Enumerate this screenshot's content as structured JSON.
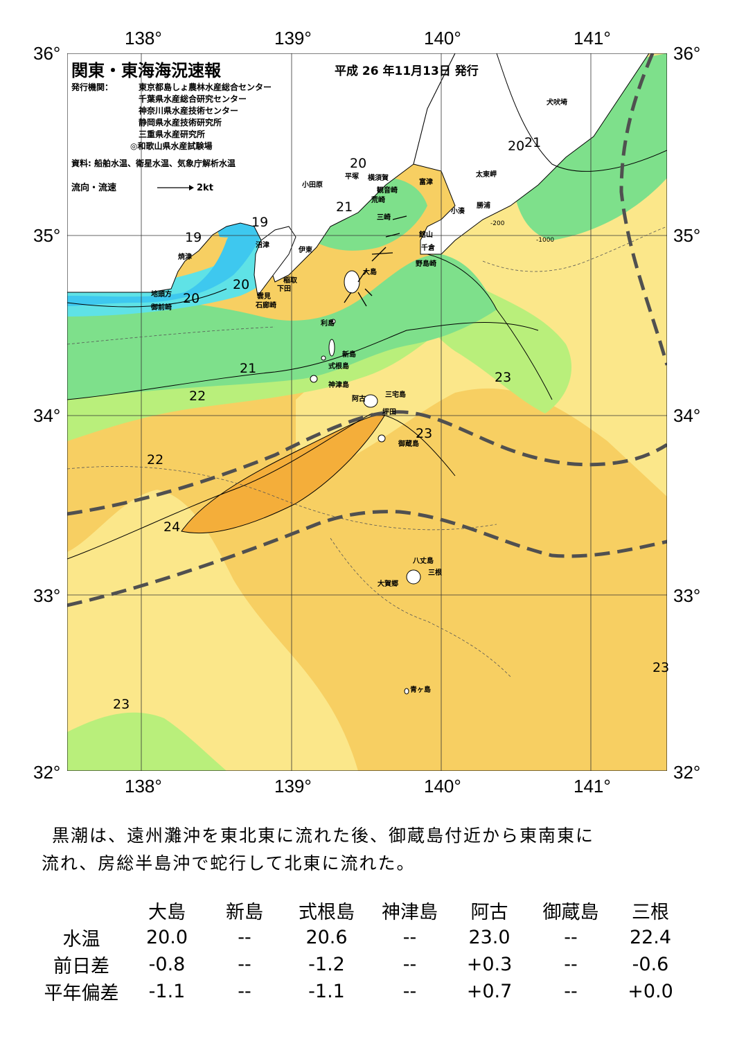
{
  "header": {
    "title": "関東・東海海況速報",
    "date": "平成 26 年11月13日 発行",
    "issuer_label": "発行機関：",
    "issuers": [
      "東京都島しょ農林水産総合センター",
      "千葉県水産総合研究センター",
      "神奈川県水産技術センター",
      "静岡県水産技術研究所",
      "三重県水産研究所",
      "◎和歌山県水産試験場"
    ],
    "sources": "資料: 船舶水温、衛星水温、気象庁解析水温",
    "flow_label": "流向・流速",
    "flow_scale": "2kt"
  },
  "axes": {
    "lon_labels": [
      "138°",
      "139°",
      "140°",
      "141°"
    ],
    "lat_labels": [
      "36°",
      "35°",
      "34°",
      "33°",
      "32°"
    ]
  },
  "place_names": [
    "犬吠埼",
    "太東岬",
    "勝浦",
    "小湊",
    "館山",
    "千倉",
    "野島崎",
    "富津",
    "観音崎",
    "横須賀",
    "平塚",
    "小田原",
    "荒崎",
    "三崎",
    "大島",
    "利島",
    "新島",
    "式根島",
    "神津島",
    "三宅島",
    "阿古",
    "坪田",
    "御蔵島",
    "八丈島",
    "三根",
    "大賀郷",
    "青ヶ島",
    "沼津",
    "伊東",
    "稲取",
    "下田",
    "雲見",
    "石廊崎",
    "焼津",
    "地頭方",
    "御前崎"
  ],
  "isotherm_labels": [
    "19",
    "19",
    "20",
    "20",
    "20",
    "20",
    "21",
    "21",
    "21",
    "22",
    "22",
    "23",
    "23",
    "23",
    "23",
    "24"
  ],
  "depth_labels": [
    "-200",
    "-1000"
  ],
  "colors": {
    "c19": "#3ec8ef",
    "c20": "#5fe2e6",
    "c21": "#7ee08b",
    "c22": "#b9ef7b",
    "c23": "#fbe78a",
    "c23b": "#f7cf62",
    "c24": "#f4ae3a",
    "land": "#ffffff",
    "kuroshio": "#505050"
  },
  "description": {
    "line1": "黒潮は、遠州灘沖を東北東に流れた後、御蔵島付近から東南東に",
    "line2": "流れ、房総半島沖で蛇行して北東に流れた。"
  },
  "table": {
    "columns": [
      "大島",
      "新島",
      "式根島",
      "神津島",
      "阿古",
      "御蔵島",
      "三根"
    ],
    "rows": [
      {
        "label": "水温",
        "values": [
          "20.0",
          "--",
          "20.6",
          "--",
          "23.0",
          "--",
          "22.4"
        ]
      },
      {
        "label": "前日差",
        "values": [
          "-0.8",
          "--",
          "-1.2",
          "--",
          "+0.3",
          "--",
          "-0.6"
        ]
      },
      {
        "label": "平年偏差",
        "values": [
          "-1.1",
          "--",
          "-1.1",
          "--",
          "+0.7",
          "--",
          "+0.0"
        ]
      }
    ]
  }
}
